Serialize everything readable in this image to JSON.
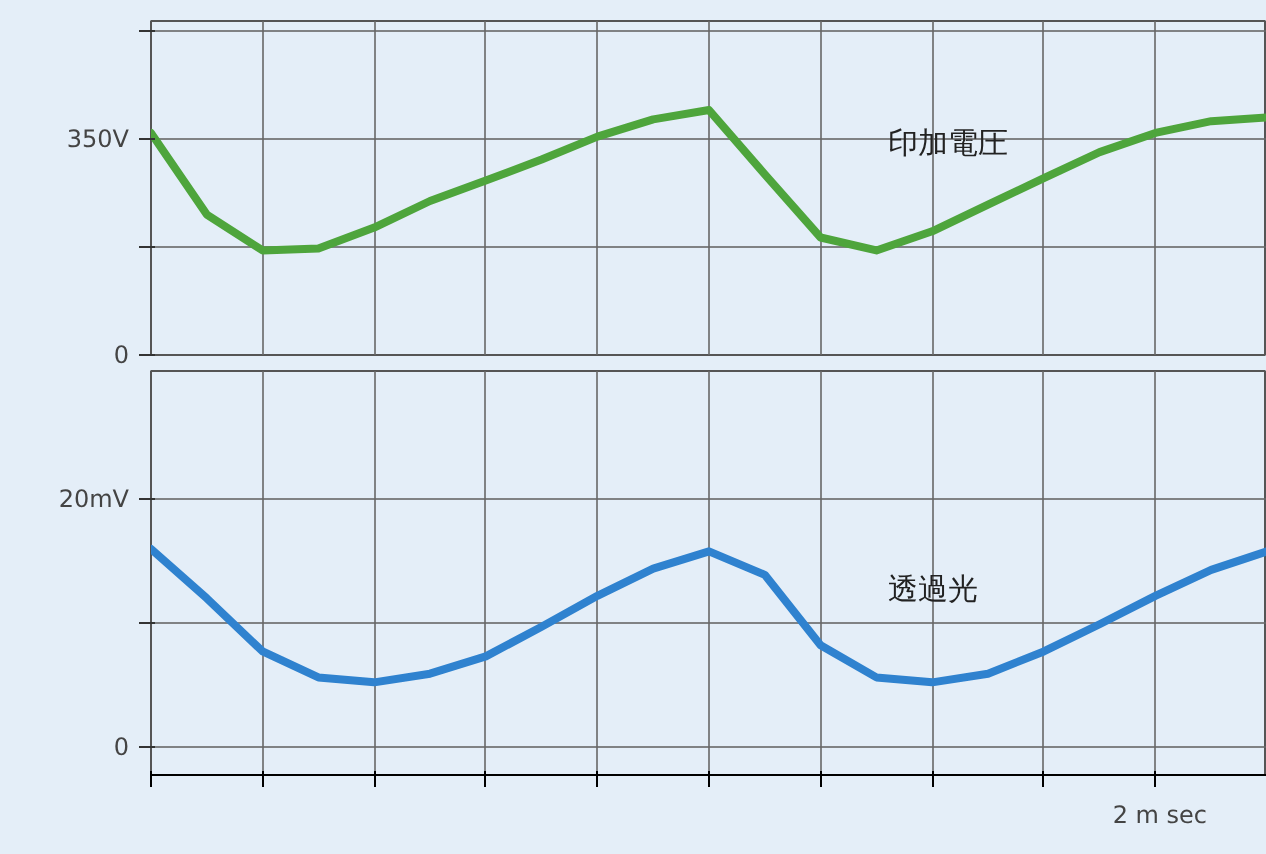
{
  "chart_data": [
    {
      "type": "line",
      "ylim": [
        0,
        540
      ],
      "tick_labels": "y",
      "grid": true,
      "categories": [
        null,
        null,
        null,
        null,
        null,
        null,
        null,
        null,
        null,
        null,
        null,
        null,
        null,
        null,
        null,
        null,
        null,
        null,
        null,
        null,
        null
      ],
      "yticks": [
        {
          "value": 0,
          "label": "0"
        },
        {
          "value": 175,
          "label": null
        },
        {
          "value": 350,
          "label": "350V"
        },
        {
          "value": 525,
          "label": null
        }
      ],
      "series": [
        {
          "name": "印加電圧",
          "color": "#4ea53c",
          "values": [
            359,
            227,
            169,
            172,
            206,
            249,
            282,
            316,
            353,
            381,
            396,
            292,
            190,
            169,
            200,
            243,
            286,
            328,
            359,
            378,
            384
          ]
        }
      ]
    },
    {
      "type": "line",
      "ylim": [
        -2.3,
        30.4
      ],
      "tick_labels": "y",
      "grid": true,
      "categories": [
        null,
        null,
        null,
        null,
        null,
        null,
        null,
        null,
        null,
        null,
        null,
        null,
        null,
        null,
        null,
        null,
        null,
        null,
        null,
        null,
        null
      ],
      "yticks": [
        {
          "value": 0,
          "label": "0"
        },
        {
          "value": 10,
          "label": null
        },
        {
          "value": 20,
          "label": "20mV"
        }
      ],
      "annotations": [
        "2 m sec"
      ],
      "series": [
        {
          "name": "透過光",
          "color": "#2f82cf",
          "values": [
            16.0,
            12.0,
            7.7,
            5.6,
            5.2,
            5.9,
            7.3,
            9.7,
            12.2,
            14.4,
            15.8,
            13.9,
            8.2,
            5.6,
            5.2,
            5.9,
            7.7,
            9.9,
            12.2,
            14.3,
            15.8
          ]
        }
      ]
    }
  ]
}
